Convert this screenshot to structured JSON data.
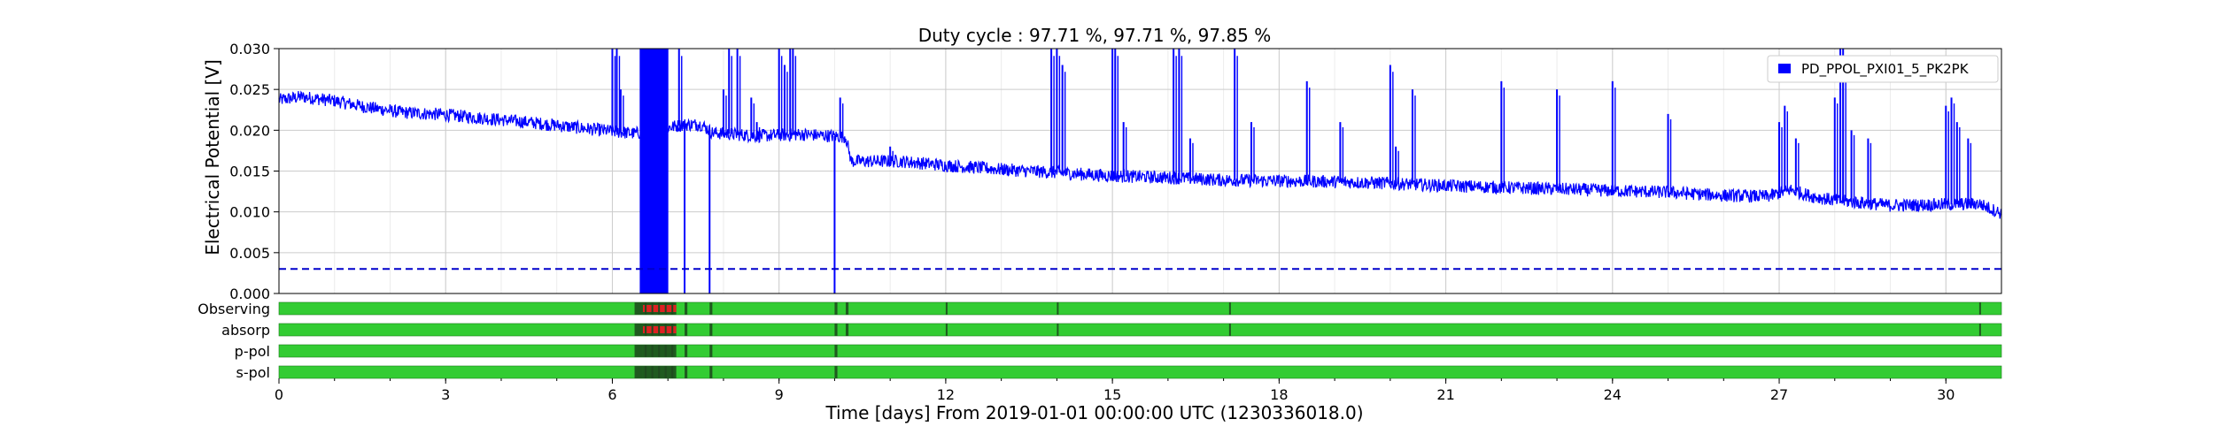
{
  "chart_data": {
    "type": "line",
    "title": "Duty cycle : 97.71 %, 97.71 %, 97.85 %",
    "xlabel": "Time [days] From 2019-01-01 00:00:00 UTC (1230336018.0)",
    "ylabel": "Electrical Potential [V]",
    "xlim": [
      0,
      31
    ],
    "ylim": [
      0,
      0.03
    ],
    "x_ticks": [
      0,
      3,
      6,
      9,
      12,
      15,
      18,
      21,
      24,
      27,
      30
    ],
    "y_ticks": [
      "0.000",
      "0.005",
      "0.010",
      "0.015",
      "0.020",
      "0.025",
      "0.030"
    ],
    "grid": true,
    "legend_position": "top-right",
    "colors": {
      "series": "#0000ff",
      "threshold": "#0000cc",
      "segment_on": "#33cc33",
      "segment_off": "#dd2222",
      "grid": "#cccccc"
    },
    "series": [
      {
        "name": "PD_PPOL_PXI01_5_PK2PK",
        "style": "solid",
        "baseline": [
          [
            0,
            0.0237
          ],
          [
            0.4,
            0.0241
          ],
          [
            1.0,
            0.0236
          ],
          [
            1.6,
            0.0228
          ],
          [
            2.2,
            0.0222
          ],
          [
            3.0,
            0.0219
          ],
          [
            3.8,
            0.0214
          ],
          [
            4.6,
            0.0209
          ],
          [
            5.4,
            0.0203
          ],
          [
            6.1,
            0.0198
          ],
          [
            6.4,
            0.0196
          ],
          [
            7.3,
            0.0207
          ],
          [
            7.6,
            0.0207
          ],
          [
            7.8,
            0.0197
          ],
          [
            8.6,
            0.0193
          ],
          [
            9.4,
            0.0195
          ],
          [
            10.2,
            0.0192
          ],
          [
            10.3,
            0.0162
          ],
          [
            11.2,
            0.0162
          ],
          [
            12.0,
            0.0157
          ],
          [
            13.0,
            0.0152
          ],
          [
            14.0,
            0.0148
          ],
          [
            15.0,
            0.0144
          ],
          [
            16.0,
            0.0142
          ],
          [
            17.0,
            0.0139
          ],
          [
            18.0,
            0.0138
          ],
          [
            19.0,
            0.0137
          ],
          [
            20.0,
            0.0135
          ],
          [
            21.0,
            0.0132
          ],
          [
            22.0,
            0.013
          ],
          [
            23.0,
            0.0128
          ],
          [
            24.0,
            0.0126
          ],
          [
            25.0,
            0.0124
          ],
          [
            26.0,
            0.012
          ],
          [
            26.8,
            0.0119
          ],
          [
            27.2,
            0.0127
          ],
          [
            27.6,
            0.0119
          ],
          [
            28.0,
            0.0114
          ],
          [
            29.0,
            0.0108
          ],
          [
            30.0,
            0.0109
          ],
          [
            30.6,
            0.011
          ],
          [
            31.0,
            0.0098
          ]
        ],
        "spikes": [
          [
            6.0,
            0.03
          ],
          [
            6.08,
            0.03
          ],
          [
            6.15,
            0.025
          ],
          [
            7.2,
            0.03
          ],
          [
            7.5,
            0.021
          ],
          [
            8.0,
            0.025
          ],
          [
            8.1,
            0.03
          ],
          [
            8.25,
            0.03
          ],
          [
            8.5,
            0.024
          ],
          [
            8.6,
            0.021
          ],
          [
            9.0,
            0.03
          ],
          [
            9.1,
            0.028
          ],
          [
            9.2,
            0.03
          ],
          [
            9.25,
            0.03
          ],
          [
            10.1,
            0.024
          ],
          [
            11.0,
            0.018
          ],
          [
            13.9,
            0.03
          ],
          [
            14.0,
            0.03
          ],
          [
            14.1,
            0.028
          ],
          [
            15.0,
            0.03
          ],
          [
            15.05,
            0.03
          ],
          [
            15.2,
            0.021
          ],
          [
            16.1,
            0.03
          ],
          [
            16.2,
            0.03
          ],
          [
            16.4,
            0.019
          ],
          [
            17.2,
            0.03
          ],
          [
            17.5,
            0.021
          ],
          [
            18.5,
            0.026
          ],
          [
            19.1,
            0.021
          ],
          [
            20.0,
            0.028
          ],
          [
            20.1,
            0.018
          ],
          [
            20.4,
            0.025
          ],
          [
            22.0,
            0.026
          ],
          [
            23.0,
            0.025
          ],
          [
            24.0,
            0.026
          ],
          [
            25.0,
            0.022
          ],
          [
            27.0,
            0.021
          ],
          [
            27.1,
            0.023
          ],
          [
            27.3,
            0.019
          ],
          [
            28.0,
            0.024
          ],
          [
            28.1,
            0.03
          ],
          [
            28.15,
            0.03
          ],
          [
            28.3,
            0.02
          ],
          [
            28.6,
            0.019
          ],
          [
            30.0,
            0.023
          ],
          [
            30.1,
            0.024
          ],
          [
            30.2,
            0.021
          ],
          [
            30.4,
            0.019
          ]
        ],
        "dense_band": [
          6.5,
          7.0
        ],
        "dropouts": [
          7.3,
          7.75,
          10.0
        ]
      },
      {
        "name": "",
        "style": "dashed",
        "constant": 0.003
      }
    ],
    "segments": [
      {
        "label": "Observing",
        "off_ranges": [
          [
            6.4,
            6.55
          ],
          [
            6.55,
            7.15
          ],
          [
            7.3,
            7.35
          ],
          [
            7.75,
            7.8
          ],
          [
            10.0,
            10.05
          ],
          [
            10.2,
            10.25
          ],
          [
            12.0,
            12.03
          ],
          [
            14.0,
            14.03
          ],
          [
            17.1,
            17.13
          ],
          [
            30.6,
            30.63
          ]
        ],
        "red_ranges": [
          [
            6.55,
            7.15
          ]
        ]
      },
      {
        "label": "absorp",
        "off_ranges": [
          [
            6.4,
            6.55
          ],
          [
            6.55,
            7.15
          ],
          [
            7.3,
            7.35
          ],
          [
            7.75,
            7.8
          ],
          [
            10.0,
            10.05
          ],
          [
            10.2,
            10.25
          ],
          [
            12.0,
            12.03
          ],
          [
            14.0,
            14.03
          ],
          [
            17.1,
            17.13
          ],
          [
            30.6,
            30.63
          ]
        ],
        "red_ranges": [
          [
            6.55,
            7.15
          ]
        ]
      },
      {
        "label": "p-pol",
        "off_ranges": [
          [
            6.4,
            6.55
          ],
          [
            6.55,
            7.15
          ],
          [
            7.3,
            7.35
          ],
          [
            7.75,
            7.8
          ],
          [
            10.0,
            10.05
          ]
        ],
        "red_ranges": []
      },
      {
        "label": "s-pol",
        "off_ranges": [
          [
            6.4,
            6.55
          ],
          [
            6.55,
            7.15
          ],
          [
            7.3,
            7.35
          ],
          [
            7.75,
            7.8
          ],
          [
            10.0,
            10.05
          ]
        ],
        "red_ranges": []
      }
    ]
  }
}
